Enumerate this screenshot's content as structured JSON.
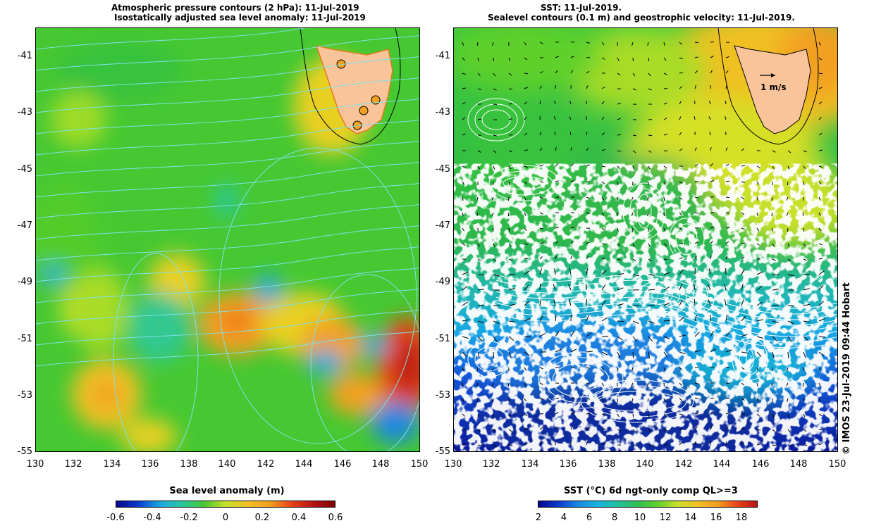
{
  "left_panel": {
    "title_line1": "Atmospheric pressure contours (2 hPa): 11-Jul-2019",
    "title_line2": "Isostatically adjusted sea level anomaly: 11-Jul-2019",
    "y_ticks": [
      "-41",
      "-43",
      "-45",
      "-47",
      "-49",
      "-51",
      "-53",
      "-55"
    ],
    "x_ticks": [
      "130",
      "132",
      "134",
      "136",
      "138",
      "140",
      "142",
      "144",
      "146",
      "148",
      "150"
    ]
  },
  "right_panel": {
    "title_line1": "SST: 11-Jul-2019.",
    "title_line2": "Sealevel contours (0.1 m) and geostrophic velocity: 11-Jul-2019.",
    "y_ticks": [
      "-41",
      "-43",
      "-45",
      "-47",
      "-49",
      "-51",
      "-53",
      "-55"
    ],
    "x_ticks": [
      "130",
      "132",
      "134",
      "136",
      "138",
      "140",
      "142",
      "144",
      "146",
      "148",
      "150"
    ],
    "velocity_label": "1 m/s"
  },
  "colorbar_left": {
    "title": "Sea level anomaly (m)",
    "labels": [
      "-0.6",
      "-0.4",
      "-0.2",
      "0",
      "0.2",
      "0.4",
      "0.6"
    ]
  },
  "colorbar_right": {
    "title": "SST (°C) 6d ngt-only comp QL>=3",
    "labels": [
      "2",
      "4",
      "6",
      "8",
      "10",
      "12",
      "14",
      "16",
      "18"
    ]
  },
  "watermark": "© IMOS 23-Jul-2019 09:44 Hobart",
  "colors": {
    "land": "#f9c49a",
    "contour_left": "#7fe0e6",
    "contour_right": "#ffffff"
  }
}
